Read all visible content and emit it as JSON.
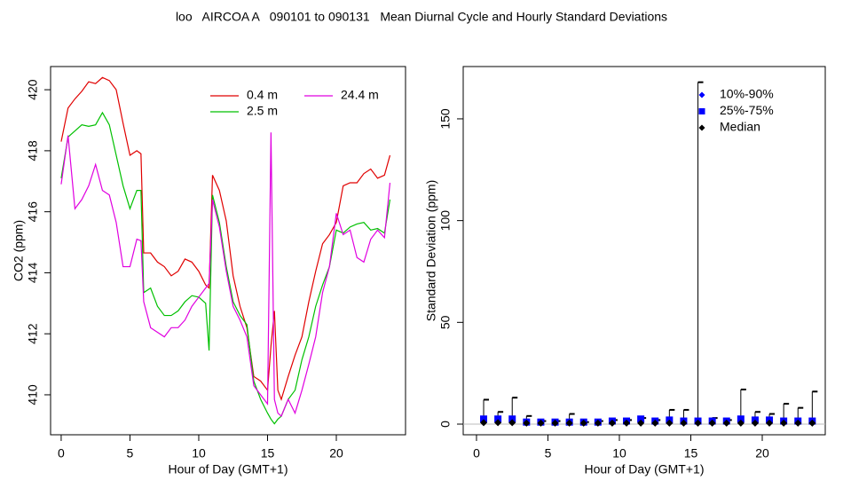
{
  "title": "loo   AIRCOA A   090101 to 090131   Mean Diurnal Cycle and Hourly Standard Deviations",
  "chart_data": [
    {
      "type": "line",
      "xlabel": "Hour of Day (GMT+1)",
      "ylabel": "CO2 (ppm)",
      "xlim": [
        -0.77,
        25.03
      ],
      "ylim": [
        408.69,
        420.76
      ],
      "xticks": [
        0,
        5,
        10,
        15,
        20
      ],
      "yticks": [
        410,
        412,
        414,
        416,
        418,
        420
      ],
      "legend": "top-right",
      "x": [
        0,
        0.5,
        1,
        1.5,
        2,
        2.5,
        3,
        3.5,
        4,
        4.5,
        5,
        5.5,
        5.8,
        6,
        6.5,
        7,
        7.5,
        8,
        8.5,
        9,
        9.5,
        10,
        10.5,
        10.75,
        11,
        11.5,
        12,
        12.5,
        13,
        13.5,
        14,
        14.5,
        15,
        15.25,
        15.5,
        15.75,
        16,
        16.5,
        17,
        17.5,
        18,
        18.5,
        19,
        19.5,
        20,
        20.5,
        21,
        21.5,
        22,
        22.5,
        23,
        23.5,
        23.9
      ],
      "series": [
        {
          "name": "0.4 m",
          "color": "#e00000",
          "values": [
            418.3,
            419.4,
            419.7,
            419.95,
            420.26,
            420.2,
            420.4,
            420.3,
            420.0,
            418.9,
            417.85,
            418.0,
            417.9,
            414.65,
            414.65,
            414.35,
            414.2,
            413.9,
            414.05,
            414.45,
            414.35,
            414.05,
            413.6,
            413.5,
            417.2,
            416.7,
            415.7,
            413.9,
            412.9,
            412.2,
            410.6,
            410.45,
            410.15,
            411.6,
            412.75,
            410.15,
            409.85,
            410.6,
            411.3,
            411.9,
            413.05,
            414.05,
            414.95,
            415.25,
            415.65,
            416.85,
            416.95,
            416.95,
            417.25,
            417.4,
            417.1,
            417.2,
            417.85
          ]
        },
        {
          "name": "2.5 m",
          "color": "#00c000",
          "values": [
            417.1,
            418.45,
            418.65,
            418.85,
            418.8,
            418.85,
            419.25,
            418.85,
            417.85,
            416.85,
            416.1,
            416.7,
            416.7,
            413.35,
            413.5,
            412.9,
            412.6,
            412.6,
            412.75,
            413.05,
            413.25,
            413.2,
            413.0,
            411.45,
            416.55,
            415.65,
            414.2,
            413.05,
            412.6,
            412.3,
            410.45,
            409.85,
            409.4,
            409.2,
            409.05,
            409.2,
            409.3,
            409.85,
            410.15,
            411.15,
            411.9,
            412.9,
            413.6,
            414.2,
            415.4,
            415.3,
            415.5,
            415.6,
            415.65,
            415.4,
            415.45,
            415.3,
            416.4
          ]
        },
        {
          "name": "24.4 m",
          "color": "#e000e0",
          "values": [
            416.9,
            418.5,
            416.1,
            416.4,
            416.85,
            417.55,
            416.7,
            416.55,
            415.65,
            414.2,
            414.2,
            415.1,
            415.05,
            413.05,
            412.2,
            412.05,
            411.9,
            412.2,
            412.2,
            412.45,
            412.9,
            413.2,
            413.5,
            413.65,
            416.4,
            415.5,
            414.05,
            412.9,
            412.45,
            411.9,
            410.3,
            410.0,
            409.7,
            418.6,
            409.85,
            409.4,
            409.3,
            409.85,
            409.4,
            410.15,
            411.0,
            411.9,
            413.35,
            414.2,
            415.95,
            415.25,
            415.4,
            414.5,
            414.35,
            415.1,
            415.4,
            415.15,
            416.95
          ]
        }
      ]
    },
    {
      "type": "range",
      "xlabel": "Hour of Day (GMT+1)",
      "ylabel": "Standard Deviation (ppm)",
      "xlim": [
        -0.93,
        24.41
      ],
      "ylim": [
        -5.23,
        175.7
      ],
      "xticks": [
        0,
        5,
        10,
        15,
        20
      ],
      "yticks": [
        0,
        50,
        100,
        150
      ],
      "hline": 0,
      "legend": "top-right",
      "whisker_color": "#000000",
      "x": [
        0.5,
        1.5,
        2.5,
        3.5,
        4.5,
        5.5,
        6.5,
        7.5,
        8.5,
        9.5,
        10.5,
        11.5,
        12.5,
        13.5,
        14.5,
        15.5,
        16.5,
        17.5,
        18.5,
        19.5,
        20.5,
        21.5,
        22.5,
        23.5
      ],
      "series": [
        {
          "name": "10%-90%",
          "color": "#0000ff",
          "marker": "diamond",
          "values": [
            12,
            6,
            13,
            4,
            1.5,
            1.5,
            5,
            1,
            1.5,
            2,
            2,
            3,
            2,
            7,
            7,
            168,
            3,
            2,
            17,
            6,
            5,
            10,
            8,
            16
          ]
        },
        {
          "name": "25%-75%",
          "color": "#0000ff",
          "marker": "square",
          "values": [
            2.5,
            2.5,
            2.5,
            1,
            1,
            1,
            1,
            1,
            1,
            1.5,
            1.5,
            2.5,
            1.5,
            2,
            1.5,
            1.5,
            1.5,
            1.5,
            2.5,
            2,
            2,
            1.5,
            1.5,
            1.5
          ]
        },
        {
          "name": "Median",
          "color": "#000000",
          "marker": "diamond",
          "values": [
            0.7,
            0.7,
            0.7,
            0.5,
            0.5,
            0.5,
            0.5,
            0.5,
            0.5,
            0.5,
            0.5,
            0.5,
            0.5,
            0.5,
            0.5,
            0.5,
            0.5,
            0.5,
            0.5,
            0.5,
            0.5,
            0.5,
            0.5,
            0.5
          ]
        }
      ]
    }
  ]
}
